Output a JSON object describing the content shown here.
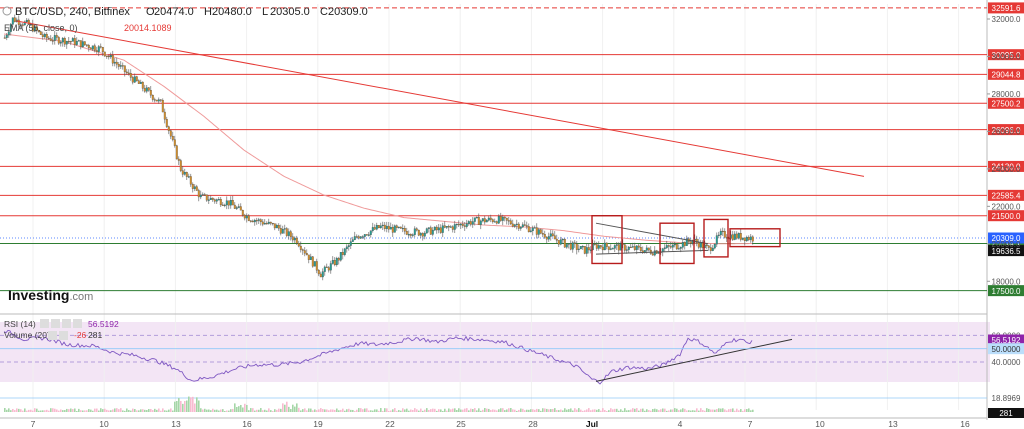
{
  "chart_data": {
    "type": "candlestick",
    "header": {
      "symbol": "BTC/USD, 240, Bitfinex",
      "ohlc": [
        {
          "key": "O",
          "value": "20474.0"
        },
        {
          "key": "H",
          "value": "20480.0"
        },
        {
          "key": "L",
          "value": "20305.0"
        },
        {
          "key": "C",
          "value": "20309.0"
        }
      ]
    },
    "indicator_label": "EMA (55, close, 0)",
    "indicator_value": "20014.1089",
    "logo": "Investing.com",
    "price_axis": {
      "ticks": [
        32000,
        30000,
        28000,
        26000,
        24000,
        22000,
        20000,
        18000
      ],
      "ylim": [
        17000,
        32800
      ]
    },
    "x_ticks": [
      "7",
      "10",
      "13",
      "16",
      "19",
      "22",
      "25",
      "28",
      "Jul",
      "4",
      "7",
      "10",
      "13",
      "16"
    ],
    "horizontal_levels": [
      {
        "value": 32591.6,
        "label": "32591.6",
        "style": "dashed",
        "color": "#e53935"
      },
      {
        "value": 30095.0,
        "label": "30095.0",
        "style": "solid",
        "color": "#e53935"
      },
      {
        "value": 29044.8,
        "label": "29044.8",
        "style": "solid",
        "color": "#e53935"
      },
      {
        "value": 27500.2,
        "label": "27500.2",
        "style": "solid",
        "color": "#e53935"
      },
      {
        "value": 26096.0,
        "label": "26096.0",
        "style": "solid",
        "color": "#e53935"
      },
      {
        "value": 24130.0,
        "label": "24130.0",
        "style": "solid",
        "color": "#e53935"
      },
      {
        "value": 22585.4,
        "label": "22585.4",
        "style": "solid",
        "color": "#e53935"
      },
      {
        "value": 21500.0,
        "label": "21500.0",
        "style": "solid",
        "color": "#e53935"
      },
      {
        "value": 20014.1,
        "label": "20014.1",
        "style": "solid",
        "color": "#2e7d32"
      },
      {
        "value": 17500.0,
        "label": "17500.0",
        "style": "solid",
        "color": "#2e7d32"
      }
    ],
    "current_price": {
      "value": 20309.0,
      "label": "20309.0",
      "color": "#2962ff"
    },
    "support_label": {
      "value": 19636.5,
      "label": "19636.5"
    },
    "series": [
      {
        "name": "BTC/USD",
        "type": "candlestick",
        "anchors": [
          [
            0,
            31000
          ],
          [
            4,
            32000
          ],
          [
            12,
            31700
          ],
          [
            20,
            31000
          ],
          [
            34,
            30800
          ],
          [
            48,
            30400
          ],
          [
            62,
            29000
          ],
          [
            78,
            27500
          ],
          [
            88,
            24000
          ],
          [
            98,
            22500
          ],
          [
            112,
            22200
          ],
          [
            122,
            21400
          ],
          [
            136,
            20900
          ],
          [
            146,
            20200
          ],
          [
            158,
            18400
          ],
          [
            166,
            19100
          ],
          [
            176,
            20400
          ],
          [
            188,
            20900
          ],
          [
            198,
            20700
          ],
          [
            208,
            20600
          ],
          [
            220,
            20800
          ],
          [
            234,
            21200
          ],
          [
            246,
            21300
          ],
          [
            258,
            21000
          ],
          [
            270,
            20500
          ],
          [
            280,
            20000
          ],
          [
            290,
            19650
          ],
          [
            296,
            19900
          ],
          [
            310,
            19800
          ],
          [
            324,
            19600
          ],
          [
            336,
            19900
          ],
          [
            344,
            20200
          ],
          [
            352,
            19700
          ],
          [
            358,
            20500
          ],
          [
            366,
            20400
          ],
          [
            374,
            20300
          ]
        ]
      },
      {
        "name": "EMA (55, close, 0)",
        "type": "line",
        "color": "#ef9a9a",
        "anchors": [
          [
            0,
            31200
          ],
          [
            30,
            30800
          ],
          [
            60,
            29800
          ],
          [
            80,
            28400
          ],
          [
            100,
            26800
          ],
          [
            120,
            25000
          ],
          [
            140,
            23600
          ],
          [
            160,
            22600
          ],
          [
            180,
            21900
          ],
          [
            200,
            21400
          ],
          [
            220,
            21200
          ],
          [
            240,
            21000
          ],
          [
            260,
            20900
          ],
          [
            280,
            20700
          ],
          [
            300,
            20400
          ],
          [
            320,
            20200
          ],
          [
            340,
            20050
          ],
          [
            360,
            20000
          ],
          [
            374,
            20014
          ]
        ]
      }
    ],
    "trend_lines": [
      {
        "from": [
          6,
          31900
        ],
        "to": [
          430,
          23600
        ],
        "color": "#e53935"
      },
      {
        "from": [
          296,
          21100
        ],
        "to": [
          352,
          20000
        ],
        "color": "#555555"
      },
      {
        "from": [
          296,
          19450
        ],
        "to": [
          352,
          19650
        ],
        "color": "#555555"
      }
    ],
    "boxes": [
      {
        "from": [
          294,
          21500
        ],
        "to": [
          309,
          18950
        ]
      },
      {
        "from": [
          328,
          21100
        ],
        "to": [
          345,
          18950
        ]
      },
      {
        "from": [
          350,
          21300
        ],
        "to": [
          362,
          19300
        ]
      },
      {
        "from": [
          363,
          20800
        ],
        "to": [
          388,
          19850
        ]
      }
    ],
    "rsi": {
      "label": "RSI (14)",
      "value": "56.5192",
      "ticks": [
        60,
        50,
        40
      ],
      "marker": {
        "value": 50,
        "label": "50.0000"
      },
      "current_label": "56.5192",
      "anchors": [
        [
          0,
          64
        ],
        [
          10,
          57
        ],
        [
          20,
          58
        ],
        [
          32,
          53
        ],
        [
          45,
          52
        ],
        [
          55,
          47
        ],
        [
          65,
          45
        ],
        [
          76,
          41
        ],
        [
          86,
          35
        ],
        [
          94,
          26
        ],
        [
          104,
          29
        ],
        [
          116,
          35
        ],
        [
          126,
          38
        ],
        [
          138,
          38
        ],
        [
          148,
          40
        ],
        [
          160,
          46
        ],
        [
          170,
          51
        ],
        [
          178,
          54
        ],
        [
          186,
          53
        ],
        [
          196,
          55
        ],
        [
          206,
          58
        ],
        [
          216,
          55
        ],
        [
          226,
          58
        ],
        [
          238,
          57
        ],
        [
          250,
          55
        ],
        [
          262,
          49
        ],
        [
          276,
          42
        ],
        [
          286,
          37
        ],
        [
          294,
          27
        ],
        [
          298,
          25
        ],
        [
          304,
          33
        ],
        [
          312,
          36
        ],
        [
          322,
          35
        ],
        [
          330,
          38
        ],
        [
          338,
          46
        ],
        [
          342,
          58
        ],
        [
          348,
          55
        ],
        [
          356,
          46
        ],
        [
          362,
          56
        ],
        [
          368,
          57
        ],
        [
          372,
          54
        ],
        [
          374,
          56.5
        ]
      ],
      "trend_line": {
        "from": [
          296,
          25.5
        ],
        "to": [
          394,
          57
        ]
      }
    },
    "volume": {
      "label": "Volume (20)",
      "value_change": "-26",
      "value": "281",
      "marker": {
        "value": "18.8969"
      },
      "current_label": "281"
    }
  }
}
